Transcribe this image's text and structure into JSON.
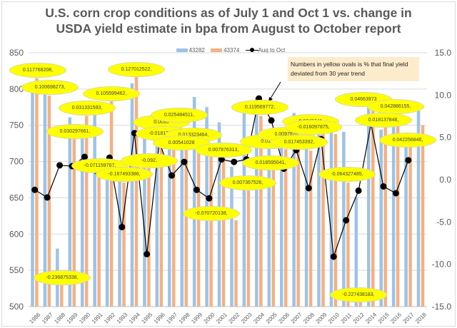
{
  "chart_data": {
    "type": "bar",
    "title": "U.S. corn crop conditions as of July 1 and Oct 1 vs. change in USDA yield estimate in bpa from August to October report",
    "title_lines": [
      "U.S. corn crop conditions as of July 1 and Oct 1 vs. change in",
      "USDA yield estimate in bpa from August to October report"
    ],
    "categories": [
      "1986",
      "1987",
      "1988",
      "1989",
      "1990",
      "1991",
      "1992",
      "1993",
      "1994",
      "1995",
      "1996",
      "1997",
      "1998",
      "1999",
      "2000",
      "2001",
      "2002",
      "2003",
      "2004",
      "2005",
      "2006",
      "2007",
      "2008",
      "2009",
      "2010",
      "2011",
      "2012",
      "2014",
      "2015",
      "2016",
      "2017",
      "2018"
    ],
    "series": [
      {
        "name": "43282",
        "type": "bar",
        "axis": "left",
        "color": "#9dc3e6",
        "values": [
          798,
          797,
          580,
          761,
          733,
          769,
          690,
          680,
          808,
          735,
          721,
          739,
          742,
          789,
          775,
          754,
          693,
          769,
          788,
          726,
          746,
          767,
          726,
          746,
          741,
          741,
          651,
          778,
          744,
          755,
          733,
          771
        ]
      },
      {
        "name": "43374",
        "type": "bar",
        "axis": "left",
        "color": "#f4b183",
        "values": [
          815,
          791,
          530,
          731,
          763,
          680,
          783,
          671,
          817,
          692,
          739,
          735,
          720,
          716,
          716,
          705,
          619,
          660,
          763,
          688,
          717,
          729,
          715,
          746,
          738,
          671,
          506,
          772,
          748,
          751,
          723,
          750
        ]
      },
      {
        "name": "Aug to Oct",
        "type": "line",
        "axis": "right",
        "color": "#000000",
        "values": [
          -1.2,
          -2.1,
          1.7,
          1.6,
          2.7,
          1.0,
          2.6,
          -5.6,
          5.5,
          -8.8,
          4.4,
          0.5,
          2.1,
          -1.2,
          -2.2,
          2.4,
          2.1,
          2.4,
          9.6,
          7.0,
          1.3,
          3.5,
          -1.0,
          4.8,
          -9.1,
          -4.8,
          -1.3,
          6.6,
          -0.8,
          -1.6,
          2.3,
          null
        ]
      }
    ],
    "ylim_left": [
      500,
      850
    ],
    "ylim_right": [
      -15,
      15
    ],
    "yticks_left": [
      "850",
      "800",
      "750",
      "700",
      "650",
      "600",
      "550",
      "500"
    ],
    "yticks_right": [
      "15.0",
      "10.0",
      "5.0",
      "0.0",
      "-5.0",
      "-10.0",
      "-15.0"
    ],
    "legend_position": "top",
    "grid": true,
    "annotation": "Numbers in yellow ovals is % that final yield deviated from 30 year trend",
    "oval_labels": [
      "0.117768208,",
      "0.100698273,",
      "-0.236875338,",
      "0.030297661,",
      "0.031331593,",
      "-0.071159767,",
      "0.105599462,",
      "-0.167493386,",
      "0.127012522,",
      "-0.092,",
      "0.0096",
      "-0.018133912",
      "0.025484511,",
      "0.013323464,",
      "0.00541028",
      "0.007876313,",
      "-0.070720138,",
      "0.007367526,",
      "0.119569772,",
      "0.0127",
      "0.018595041,",
      "0.0097820",
      "0.017453392,",
      "0.0745041",
      "-0.016097875,",
      "-0.064327485,",
      "-0.227438183,",
      "0.04663973",
      "0.042886155,",
      "0.018137848,",
      "0.042256846,"
    ]
  }
}
